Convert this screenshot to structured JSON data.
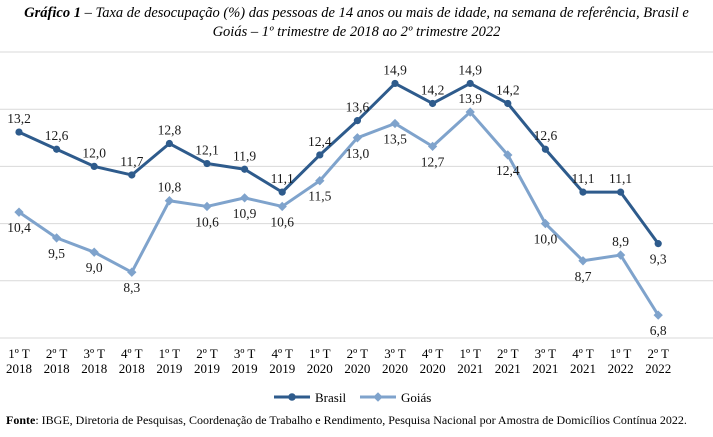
{
  "title": {
    "label": "Gráfico 1",
    "line1": " – Taxa de desocupação (%) das pessoas de 14 anos ou mais de idade, na semana de referência, Brasil e",
    "line2": "Goiás – 1º trimestre de 2018 ao 2º trimestre 2022"
  },
  "source": {
    "label": "Fonte",
    "text": ": IBGE, Diretoria de Pesquisas, Coordenação de Trabalho e Rendimento, Pesquisa Nacional por Amostra de Domicílios Contínua 2022."
  },
  "chart_data": {
    "type": "line",
    "categories": [
      [
        "1º T",
        "2018"
      ],
      [
        "2º T",
        "2018"
      ],
      [
        "3º T",
        "2018"
      ],
      [
        "4º T",
        "2018"
      ],
      [
        "1º T",
        "2019"
      ],
      [
        "2º T",
        "2019"
      ],
      [
        "3º T",
        "2019"
      ],
      [
        "4º T",
        "2019"
      ],
      [
        "1º T",
        "2020"
      ],
      [
        "2º T",
        "2020"
      ],
      [
        "3º T",
        "2020"
      ],
      [
        "4º T",
        "2020"
      ],
      [
        "1º T",
        "2021"
      ],
      [
        "2º T",
        "2021"
      ],
      [
        "3º T",
        "2021"
      ],
      [
        "4º T",
        "2021"
      ],
      [
        "1º T",
        "2022"
      ],
      [
        "2º T",
        "2022"
      ]
    ],
    "series": [
      {
        "name": "Brasil",
        "color": "#2e5b8c",
        "values": [
          13.2,
          12.6,
          12.0,
          11.7,
          12.8,
          12.1,
          11.9,
          11.1,
          12.4,
          13.6,
          14.9,
          14.2,
          14.9,
          14.2,
          12.6,
          11.1,
          11.1,
          9.3
        ],
        "labels": [
          "13,2",
          "12,6",
          "12,0",
          "11,7",
          "12,8",
          "12,1",
          "11,9",
          "11,1",
          "12,4",
          "13,6",
          "14,9",
          "14,2",
          "14,9",
          "14,2",
          "12,6",
          "11,1",
          "11,1",
          "9,3"
        ],
        "label_pos": [
          "above",
          "above",
          "above",
          "above",
          "above",
          "above",
          "above",
          "above",
          "above",
          "above",
          "above",
          "above",
          "above",
          "above",
          "above",
          "above",
          "above",
          "below"
        ]
      },
      {
        "name": "Goiás",
        "color": "#7fa3cc",
        "values": [
          10.4,
          9.5,
          9.0,
          8.3,
          10.8,
          10.6,
          10.9,
          10.6,
          11.5,
          13.0,
          13.5,
          12.7,
          13.9,
          12.4,
          10.0,
          8.7,
          8.9,
          6.8
        ],
        "labels": [
          "10,4",
          "9,5",
          "9,0",
          "8,3",
          "10,8",
          "10,6",
          "10,9",
          "10,6",
          "11,5",
          "13,0",
          "13,5",
          "12,7",
          "13,9",
          "12,4",
          "10,0",
          "8,7",
          "8,9",
          "6,8"
        ],
        "label_pos": [
          "below",
          "below",
          "below",
          "below",
          "above",
          "below",
          "below",
          "below",
          "below",
          "below",
          "below",
          "below",
          "above",
          "below",
          "below",
          "below",
          "above",
          "below"
        ]
      }
    ],
    "ylim": [
      6,
      16
    ],
    "y_gridlines": [
      6,
      8,
      10,
      12,
      14,
      16
    ],
    "grid": true,
    "legend_position": "bottom-center"
  }
}
